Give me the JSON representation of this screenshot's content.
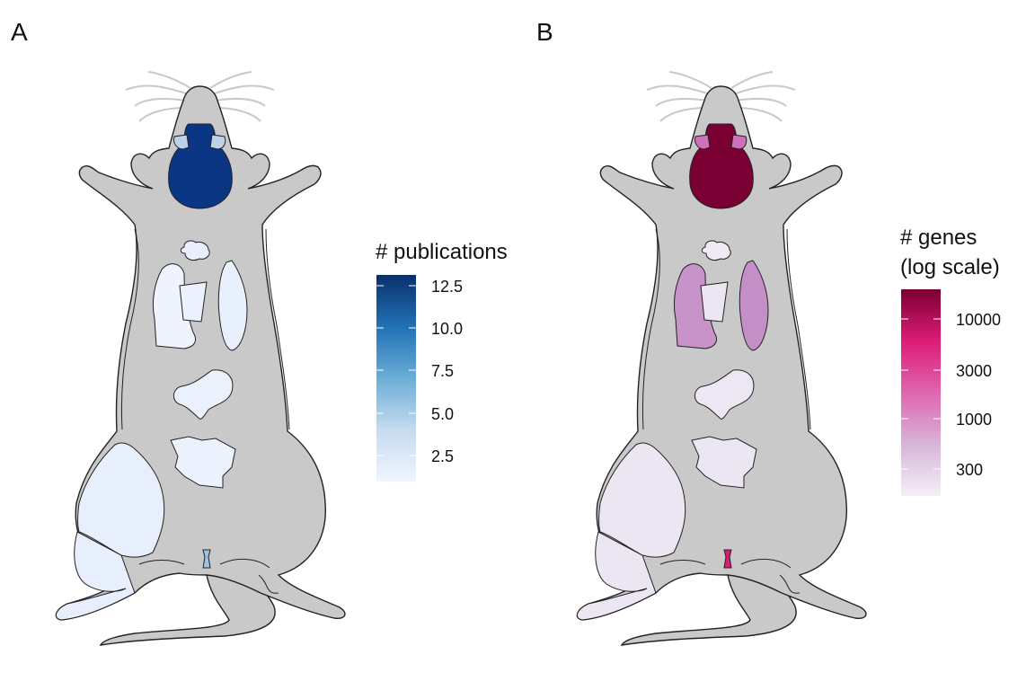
{
  "panels": [
    {
      "label": "A",
      "legend": {
        "title_lines": [
          "# publications"
        ],
        "ticks": [
          "12.5",
          "10.0",
          "7.5",
          "5.0",
          "2.5"
        ],
        "gradient": [
          "#f0f5ff",
          "#c6dbef",
          "#6baed6",
          "#2171b5",
          "#08306b"
        ]
      },
      "colors": {
        "brain": "#0b3683",
        "olfactory": "#bdd2ea",
        "lungs": "#e8effc",
        "heart": "#ecf2fd",
        "liver_left": "#eef3fd",
        "liver_right": "#e9f0fd",
        "stomach": "#eaf1fd",
        "kidney": "#ecf2fd",
        "muscle": "#e7eefc",
        "bladder": "#9dc4e4"
      }
    },
    {
      "label": "B",
      "legend": {
        "title_lines": [
          "# genes",
          "(log scale)"
        ],
        "ticks": [
          "10000",
          "3000",
          "1000",
          "300"
        ],
        "gradient": [
          "#f4eff7",
          "#d7b5d8",
          "#df65b0",
          "#dd1c77",
          "#7a0030"
        ]
      },
      "colors": {
        "brain": "#7a0034",
        "olfactory": "#d070b8",
        "lungs": "#efeaf4",
        "heart": "#ece6f2",
        "liver_left": "#c793c9",
        "liver_right": "#c48ec6",
        "stomach": "#ece7f3",
        "kidney": "#ebe6f1",
        "muscle": "#ebe6f1",
        "bladder": "#dd1c77"
      }
    }
  ]
}
